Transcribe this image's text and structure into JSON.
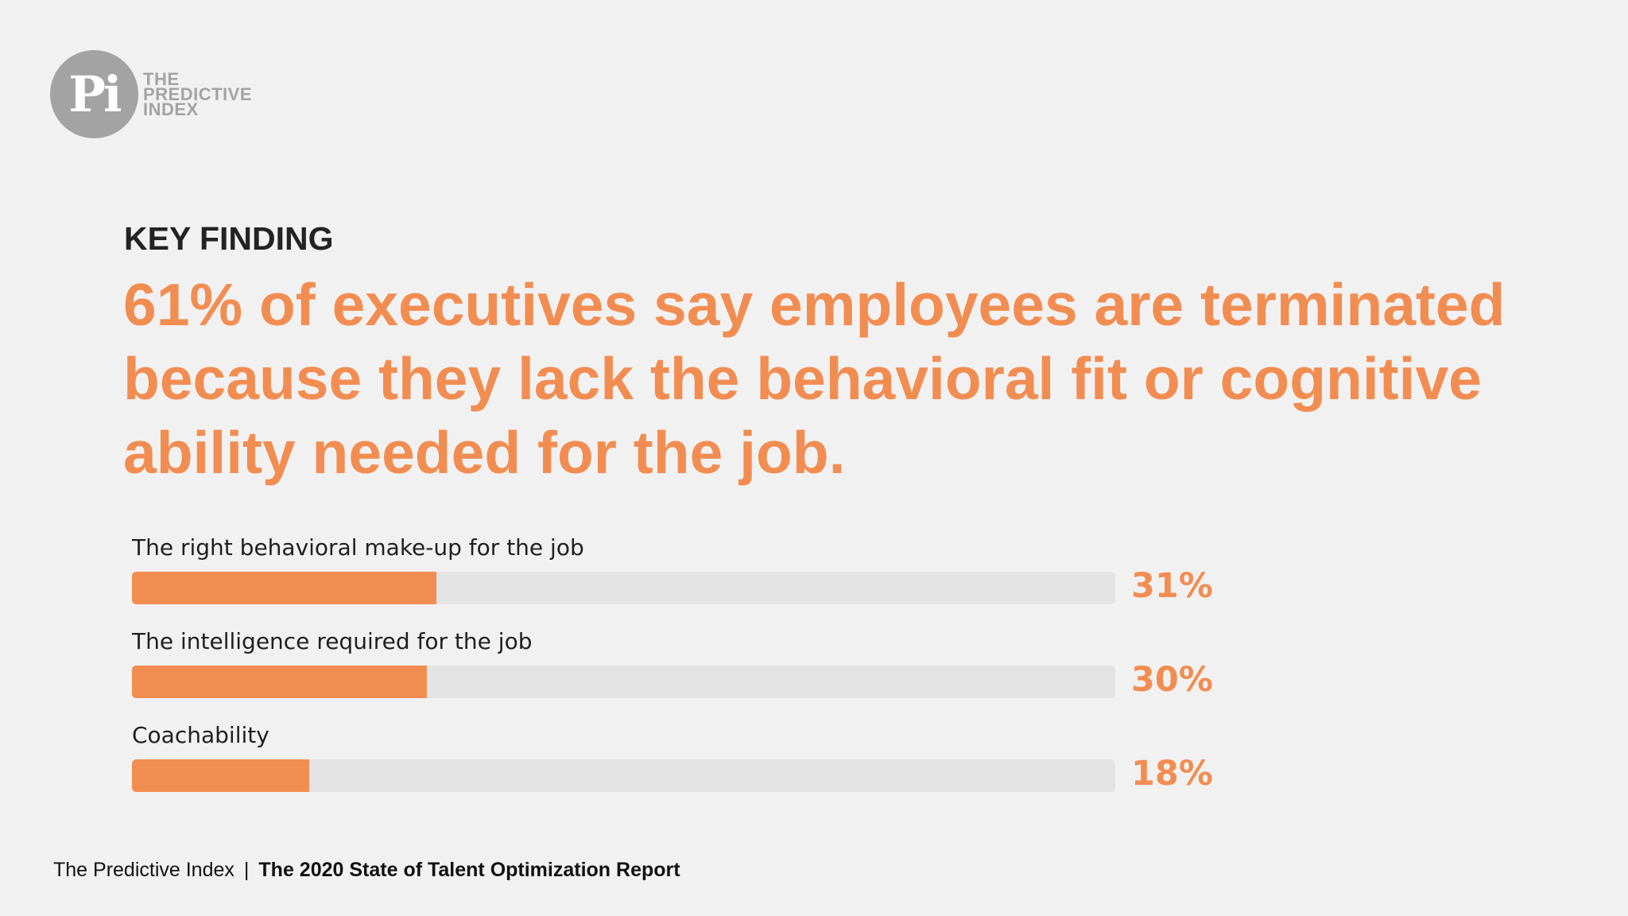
{
  "brand": {
    "monogram": "Pi",
    "wordmark": [
      "THE",
      "PREDICTIVE",
      "INDEX"
    ]
  },
  "eyebrow": "KEY FINDING",
  "headline": "61% of executives say employees are terminated because they lack the behavioral fit or cognitive ability needed for the job.",
  "chart_data": {
    "type": "bar",
    "orientation": "horizontal",
    "categories": [
      "The right behavioral make-up for the job",
      "The intelligence required for the job",
      "Coachability"
    ],
    "values": [
      31,
      30,
      18
    ],
    "value_labels": [
      "31%",
      "30%",
      "18%"
    ],
    "ylim": [
      0,
      100
    ],
    "unit": "%"
  },
  "footer": {
    "source": "The Predictive Index",
    "separator": "|",
    "report": "The 2020 State of Talent Optimization Report"
  },
  "colors": {
    "accent": "#f28d52",
    "track": "#e3e3e3",
    "background": "#f2f1f1",
    "logo": "#a3a3a3"
  }
}
